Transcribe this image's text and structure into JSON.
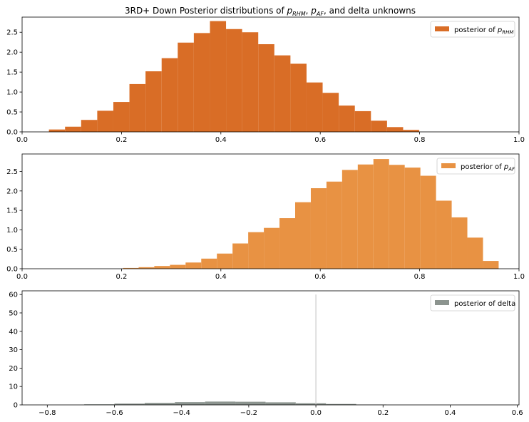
{
  "figure_title": {
    "prefix": "3RD+ Down Posterior distributions of ",
    "sym1": "p",
    "sub1": "RHM",
    "sep1": ", ",
    "sym2": "p",
    "sub2": "AF",
    "suffix": ", and delta unknowns"
  },
  "chart_data": [
    {
      "type": "bar",
      "subtype": "histogram",
      "legend": {
        "prefix": "posterior of ",
        "sym": "p",
        "sub": "RHM",
        "placement": "upper right"
      },
      "color": "#d96d26",
      "xlim": [
        0.0,
        1.0
      ],
      "ylim": [
        0.0,
        2.88
      ],
      "xticks": [
        "0.0",
        "0.2",
        "0.4",
        "0.6",
        "0.8",
        "1.0"
      ],
      "xtick_values": [
        0.0,
        0.2,
        0.4,
        0.6,
        0.8,
        1.0
      ],
      "yticks": [
        "0.0",
        "0.5",
        "1.0",
        "1.5",
        "2.0",
        "2.5"
      ],
      "ytick_values": [
        0.0,
        0.5,
        1.0,
        1.5,
        2.0,
        2.5
      ],
      "bin_edges": [
        0.054,
        0.0864,
        0.1188,
        0.1512,
        0.1836,
        0.216,
        0.2484,
        0.2808,
        0.3132,
        0.3456,
        0.378,
        0.4104,
        0.4428,
        0.4752,
        0.5076,
        0.54,
        0.5724,
        0.6048,
        0.6372,
        0.6696,
        0.702,
        0.7344,
        0.7668,
        0.7992,
        0.8316,
        0.856
      ],
      "values": [
        0.06,
        0.13,
        0.3,
        0.53,
        0.75,
        1.2,
        1.52,
        1.85,
        2.24,
        2.48,
        2.78,
        2.58,
        2.5,
        2.2,
        1.92,
        1.71,
        1.24,
        0.98,
        0.66,
        0.52,
        0.28,
        0.12,
        0.05,
        0.0,
        0.0
      ]
    },
    {
      "type": "bar",
      "subtype": "histogram",
      "legend": {
        "prefix": "posterior of ",
        "sym": "p",
        "sub": "AF",
        "placement": "upper right"
      },
      "color": "#e89243",
      "xlim": [
        0.0,
        1.0
      ],
      "ylim": [
        0.0,
        2.95
      ],
      "xticks": [
        "0.0",
        "0.2",
        "0.4",
        "0.6",
        "0.8",
        "1.0"
      ],
      "xtick_values": [
        0.0,
        0.2,
        0.4,
        0.6,
        0.8,
        1.0
      ],
      "yticks": [
        "0.0",
        "0.5",
        "1.0",
        "1.5",
        "2.0",
        "2.5"
      ],
      "ytick_values": [
        0.0,
        0.5,
        1.0,
        1.5,
        2.0,
        2.5
      ],
      "bin_edges": [
        0.203,
        0.2345,
        0.266,
        0.2975,
        0.329,
        0.3605,
        0.392,
        0.4235,
        0.455,
        0.4865,
        0.518,
        0.5495,
        0.581,
        0.6125,
        0.644,
        0.6755,
        0.707,
        0.7385,
        0.77,
        0.8015,
        0.833,
        0.8645,
        0.896,
        0.9275,
        0.959,
        0.9905
      ],
      "values": [
        0.02,
        0.04,
        0.07,
        0.1,
        0.16,
        0.26,
        0.39,
        0.65,
        0.94,
        1.05,
        1.3,
        1.71,
        2.07,
        2.24,
        2.54,
        2.68,
        2.82,
        2.67,
        2.6,
        2.39,
        1.75,
        1.32,
        0.8,
        0.2,
        0.0
      ]
    },
    {
      "type": "bar",
      "subtype": "histogram",
      "legend": {
        "label": "posterior of delta",
        "placement": "upper right"
      },
      "color": "#8c948f",
      "xlim": [
        -0.875,
        0.605
      ],
      "ylim": [
        0.0,
        62.0
      ],
      "xticks": [
        "−0.8",
        "−0.6",
        "−0.4",
        "−0.2",
        "0.0",
        "0.2",
        "0.4",
        "0.6"
      ],
      "xtick_values": [
        -0.8,
        -0.6,
        -0.4,
        -0.2,
        0.0,
        0.2,
        0.4,
        0.6
      ],
      "yticks": [
        "0",
        "10",
        "20",
        "30",
        "40",
        "50",
        "60"
      ],
      "ytick_values": [
        0,
        10,
        20,
        30,
        40,
        50,
        60
      ],
      "bin_edges": [
        -0.69,
        -0.6,
        -0.51,
        -0.42,
        -0.33,
        -0.24,
        -0.15,
        -0.06,
        0.03,
        0.12,
        0.21
      ],
      "values": [
        0.3,
        0.7,
        1.1,
        1.5,
        1.8,
        1.7,
        1.4,
        0.9,
        0.5,
        0.2
      ],
      "vline": {
        "x": 0.0,
        "y_max": 60,
        "color": "#cccccc"
      }
    }
  ]
}
